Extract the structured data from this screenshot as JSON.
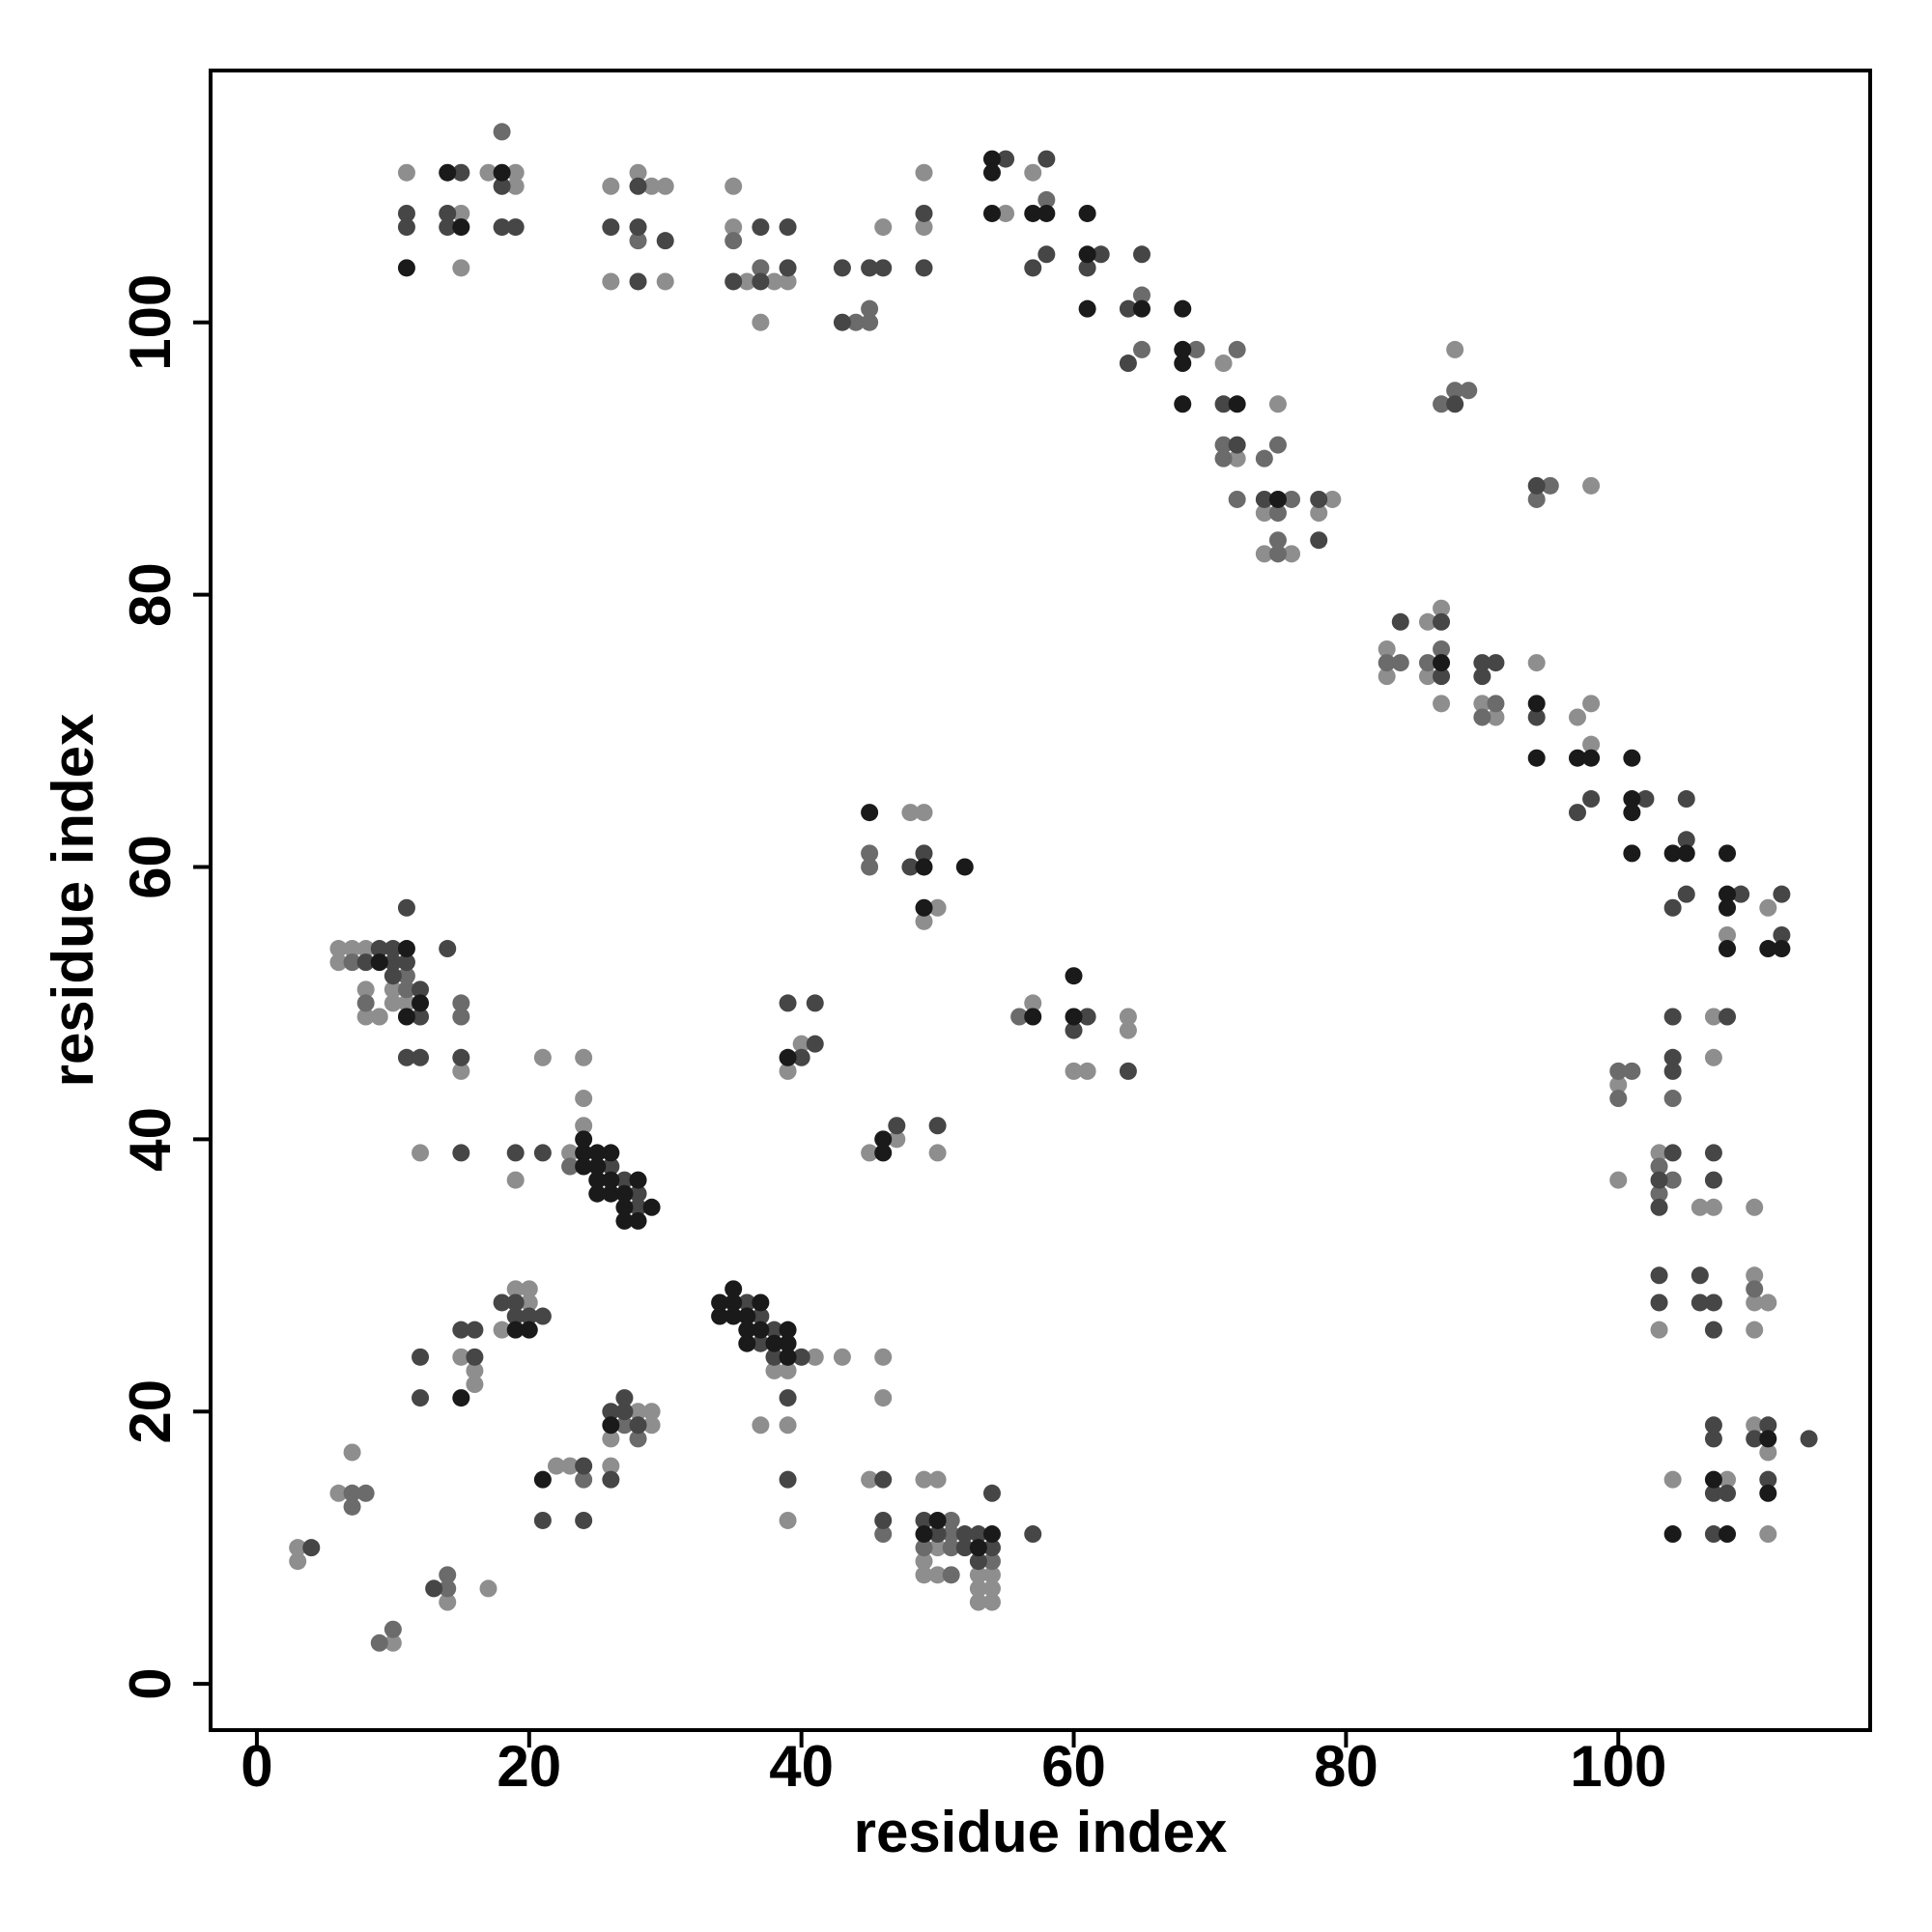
{
  "chart_data": {
    "type": "scatter",
    "x_label": "residue index",
    "y_label": "residue index",
    "xlim": [
      -3.4,
      118.5
    ],
    "ylim": [
      -3.4,
      118.5
    ],
    "xticks": [
      0,
      20,
      40,
      60,
      80,
      100
    ],
    "yticks": [
      0,
      20,
      40,
      60,
      80,
      100
    ],
    "grid": false,
    "series": [
      {
        "color": "#8e8e8e",
        "x": [
          11,
          15,
          15,
          17,
          19,
          19,
          26,
          26,
          28,
          29,
          30,
          30,
          35,
          35,
          36,
          38,
          39,
          37,
          46,
          49,
          49,
          57,
          55,
          71,
          72,
          75,
          74,
          74,
          76,
          79,
          78,
          83,
          83,
          86,
          87,
          86,
          87,
          88,
          90,
          91,
          98,
          94,
          97,
          98,
          98,
          108,
          111,
          48,
          49,
          50,
          49,
          57,
          64,
          64,
          60,
          61,
          40,
          39,
          45,
          47,
          50,
          6,
          7,
          8,
          6,
          8,
          10,
          10,
          11,
          8,
          9,
          15,
          12,
          19,
          21,
          24,
          24,
          24,
          23,
          41,
          43,
          38,
          39,
          37,
          39,
          39,
          46,
          46,
          20,
          20,
          19,
          18,
          15,
          16,
          16,
          28,
          29,
          29,
          26,
          26,
          22,
          23,
          3,
          3,
          7,
          6,
          14,
          17,
          10,
          45,
          49,
          50,
          50,
          49,
          49,
          50,
          53,
          54,
          53,
          54,
          53,
          54,
          100,
          100,
          103,
          107,
          107,
          106,
          107,
          110,
          103,
          110,
          110,
          111,
          110,
          110,
          111,
          104,
          108,
          111
        ],
        "values": [
          111,
          108,
          104,
          111,
          111,
          110,
          110,
          103,
          111,
          110,
          110,
          103,
          110,
          107,
          103,
          103,
          103,
          100,
          107,
          111,
          107,
          111,
          108,
          97,
          90,
          94,
          86,
          83,
          83,
          87,
          86,
          76,
          74,
          78,
          79,
          74,
          72,
          98,
          72,
          71,
          88,
          75,
          71,
          72,
          69,
          55,
          57,
          64,
          64,
          57,
          56,
          50,
          49,
          48,
          45,
          45,
          47,
          45,
          39,
          40,
          39,
          54,
          54,
          54,
          53,
          51,
          51,
          50,
          50,
          49,
          49,
          45,
          39,
          37,
          46,
          46,
          43,
          41,
          39,
          24,
          24,
          23,
          23,
          19,
          19,
          12,
          24,
          21,
          28,
          29,
          29,
          26,
          24,
          23,
          22,
          20,
          20,
          19,
          18,
          16,
          16,
          16,
          10,
          9,
          17,
          14,
          6,
          7,
          3,
          15,
          15,
          15,
          10,
          9,
          8,
          8,
          8,
          8,
          7,
          7,
          6,
          6,
          44,
          37,
          39,
          49,
          46,
          35,
          35,
          35,
          26,
          30,
          28,
          28,
          26,
          19,
          17,
          15,
          15,
          11
        ]
      },
      {
        "color": "#6b6b6b",
        "x": [
          18,
          28,
          35,
          37,
          44,
          45,
          45,
          58,
          65,
          65,
          69,
          72,
          71,
          71,
          72,
          74,
          75,
          75,
          75,
          75,
          76,
          83,
          84,
          86,
          87,
          87,
          88,
          89,
          91,
          90,
          95,
          94,
          45,
          45,
          56,
          7,
          11,
          8,
          11,
          15,
          15,
          23,
          27,
          28,
          24,
          7,
          8,
          7,
          14,
          14,
          9,
          10,
          46,
          51,
          49,
          51,
          51,
          54,
          51,
          100,
          101,
          100,
          103,
          104,
          103,
          104,
          110
        ],
        "values": [
          114,
          106,
          106,
          104,
          100,
          100,
          101,
          109,
          102,
          98,
          98,
          98,
          91,
          90,
          87,
          90,
          91,
          86,
          84,
          83,
          87,
          75,
          75,
          75,
          76,
          94,
          95,
          95,
          72,
          71,
          88,
          87,
          61,
          60,
          49,
          53,
          51,
          50,
          52,
          50,
          49,
          38,
          19,
          18,
          15,
          14,
          14,
          13,
          8,
          7,
          3,
          4,
          11,
          12,
          10,
          11,
          10,
          9,
          8,
          45,
          45,
          43,
          38,
          37,
          36,
          43,
          29
        ]
      },
      {
        "color": "#464646",
        "x": [
          11,
          11,
          14,
          14,
          15,
          18,
          18,
          19,
          26,
          28,
          28,
          30,
          28,
          37,
          39,
          35,
          37,
          39,
          43,
          45,
          46,
          43,
          49,
          49,
          55,
          58,
          57,
          58,
          61,
          62,
          64,
          65,
          64,
          71,
          72,
          74,
          78,
          78,
          84,
          87,
          87,
          88,
          90,
          91,
          90,
          94,
          94,
          97,
          98,
          102,
          105,
          105,
          104,
          105,
          109,
          112,
          112,
          48,
          49,
          61,
          60,
          64,
          39,
          41,
          40,
          41,
          47,
          50,
          9,
          10,
          8,
          10,
          11,
          11,
          14,
          12,
          12,
          10,
          11,
          12,
          15,
          15,
          19,
          21,
          26,
          27,
          28,
          28,
          36,
          37,
          38,
          37,
          38,
          40,
          39,
          39,
          19,
          18,
          19,
          20,
          21,
          12,
          15,
          16,
          16,
          12,
          26,
          27,
          27,
          28,
          24,
          26,
          21,
          24,
          4,
          13,
          46,
          46,
          49,
          50,
          52,
          53,
          52,
          54,
          53,
          54,
          57,
          104,
          103,
          103,
          104,
          104,
          104,
          108,
          107,
          107,
          103,
          103,
          106,
          106,
          107,
          107,
          107,
          107,
          111,
          110,
          114,
          107,
          108,
          111,
          107
        ],
        "values": [
          107,
          108,
          108,
          107,
          111,
          110,
          107,
          107,
          107,
          110,
          107,
          106,
          103,
          107,
          107,
          103,
          103,
          104,
          104,
          104,
          104,
          100,
          108,
          104,
          112,
          112,
          104,
          105,
          104,
          105,
          101,
          105,
          97,
          94,
          91,
          87,
          87,
          84,
          78,
          78,
          74,
          94,
          75,
          75,
          74,
          88,
          71,
          64,
          65,
          65,
          62,
          65,
          57,
          58,
          58,
          58,
          55,
          60,
          61,
          49,
          48,
          45,
          50,
          50,
          46,
          47,
          41,
          41,
          54,
          54,
          53,
          53,
          53,
          57,
          54,
          51,
          49,
          52,
          46,
          46,
          46,
          39,
          39,
          39,
          38,
          37,
          36,
          35,
          28,
          27,
          26,
          25,
          24,
          24,
          21,
          15,
          28,
          28,
          27,
          27,
          27,
          24,
          26,
          26,
          24,
          21,
          20,
          20,
          21,
          19,
          16,
          15,
          12,
          12,
          10,
          7,
          15,
          12,
          12,
          11,
          11,
          11,
          10,
          10,
          9,
          14,
          11,
          39,
          37,
          35,
          49,
          46,
          45,
          49,
          39,
          37,
          30,
          28,
          30,
          28,
          28,
          26,
          19,
          18,
          19,
          18,
          18,
          14,
          14,
          15,
          11
        ]
      },
      {
        "color": "#1a1a1a",
        "x": [
          11,
          14,
          15,
          18,
          54,
          54,
          54,
          57,
          58,
          61,
          61,
          61,
          65,
          68,
          68,
          68,
          68,
          72,
          75,
          87,
          94,
          94,
          97,
          98,
          101,
          101,
          101,
          101,
          104,
          105,
          108,
          108,
          108,
          108,
          111,
          112,
          45,
          49,
          52,
          49,
          57,
          60,
          60,
          39,
          46,
          46,
          11,
          9,
          12,
          11,
          24,
          24,
          25,
          26,
          24,
          25,
          25,
          26,
          25,
          26,
          27,
          28,
          27,
          29,
          27,
          28,
          34,
          35,
          37,
          35,
          34,
          35,
          36,
          36,
          37,
          39,
          36,
          38,
          39,
          39,
          19,
          20,
          15,
          26,
          21,
          50,
          49,
          54,
          53,
          111,
          107,
          111,
          104,
          108
        ],
        "values": [
          104,
          111,
          107,
          111,
          112,
          111,
          108,
          108,
          108,
          108,
          105,
          101,
          101,
          101,
          98,
          97,
          94,
          94,
          87,
          75,
          72,
          68,
          68,
          68,
          68,
          65,
          64,
          61,
          61,
          61,
          61,
          58,
          57,
          54,
          54,
          54,
          64,
          60,
          60,
          57,
          49,
          52,
          49,
          46,
          40,
          39,
          54,
          53,
          50,
          49,
          40,
          39,
          39,
          39,
          38,
          38,
          37,
          37,
          36,
          36,
          36,
          37,
          35,
          35,
          34,
          34,
          28,
          28,
          28,
          29,
          27,
          27,
          27,
          26,
          26,
          26,
          25,
          25,
          25,
          24,
          26,
          26,
          21,
          19,
          15,
          12,
          11,
          11,
          10,
          18,
          15,
          14,
          11,
          11
        ]
      }
    ]
  }
}
